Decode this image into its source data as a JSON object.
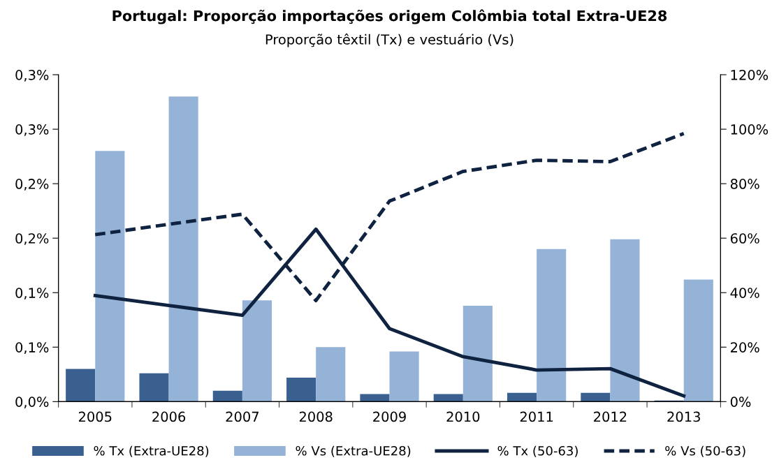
{
  "chart_data": {
    "type": "bar",
    "title": "Portugal: Proporção importações origem Colômbia total Extra-UE28",
    "subtitle": "Proporção têxtil (Tx) e vestuário (Vs)",
    "categories": [
      "2005",
      "2006",
      "2007",
      "2008",
      "2009",
      "2010",
      "2011",
      "2012",
      "2013"
    ],
    "series": [
      {
        "name": "% Tx (Extra-UE28)",
        "color": "#3a6090",
        "values": [
          0.03,
          0.026,
          0.01,
          0.022,
          0.007,
          0.007,
          0.008,
          0.008,
          0.001
        ]
      },
      {
        "name": "% Vs (Extra-UE28)",
        "color": "#95b3d7",
        "values": [
          0.23,
          0.28,
          0.093,
          0.05,
          0.046,
          0.088,
          0.14,
          0.149,
          0.112
        ]
      },
      {
        "name": "% Tx (50-63)",
        "type": "line",
        "axis": "y2",
        "line_style": "solid",
        "color": "#0f2341",
        "values": [
          38.9,
          35.3,
          31.7,
          63.3,
          26.8,
          16.5,
          11.6,
          12.1,
          2.1
        ]
      },
      {
        "name": "% Vs (50-63)",
        "type": "line",
        "axis": "y2",
        "line_style": "dashed",
        "color": "#0f2341",
        "values": [
          61.3,
          65.1,
          68.8,
          37.1,
          73.6,
          84.5,
          88.6,
          88.1,
          98.4
        ]
      }
    ],
    "ylim": [
      0,
      0.3
    ],
    "yticks": [
      {
        "value": 0,
        "label": "0,0%"
      },
      {
        "value": 0.05,
        "label": "0,1%"
      },
      {
        "value": 0.1,
        "label": "0,1%"
      },
      {
        "value": 0.15,
        "label": "0,2%"
      },
      {
        "value": 0.2,
        "label": "0,2%"
      },
      {
        "value": 0.25,
        "label": "0,3%"
      },
      {
        "value": 0.3,
        "label": "0,3%"
      }
    ],
    "y2lim": [
      0,
      120
    ],
    "y2ticks": [
      {
        "value": 0,
        "label": "0%"
      },
      {
        "value": 20,
        "label": "20%"
      },
      {
        "value": 40,
        "label": "40%"
      },
      {
        "value": 60,
        "label": "60%"
      },
      {
        "value": 80,
        "label": "80%"
      },
      {
        "value": 100,
        "label": "100%"
      },
      {
        "value": 120,
        "label": "120%"
      }
    ],
    "legend": "bottom",
    "grid": false
  }
}
